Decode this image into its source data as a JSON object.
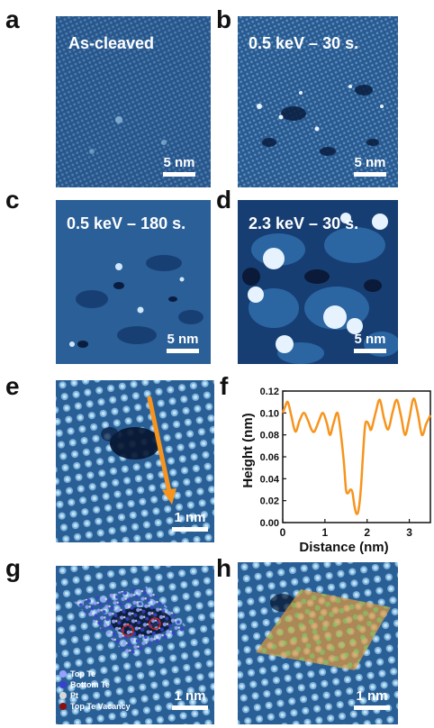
{
  "panels": {
    "a": {
      "letter": "a",
      "label": "As-cleaved",
      "scale": "5 nm"
    },
    "b": {
      "letter": "b",
      "label": "0.5 keV – 30 s.",
      "scale": "5 nm"
    },
    "c": {
      "letter": "c",
      "label": "0.5 keV – 180 s.",
      "scale": "5 nm"
    },
    "d": {
      "letter": "d",
      "label": "2.3 keV – 30 s.",
      "scale": "5 nm"
    },
    "e": {
      "letter": "e",
      "scale": "1 nm"
    },
    "f": {
      "letter": "f"
    },
    "g": {
      "letter": "g",
      "scale": "1 nm"
    },
    "h": {
      "letter": "h",
      "scale": "1 nm"
    }
  },
  "legend": {
    "items": [
      {
        "label": "Top Te",
        "color": "#9aa0ff"
      },
      {
        "label": "Bottom Te",
        "color": "#3a3fd0"
      },
      {
        "label": "Pt",
        "color": "#d8d8d8"
      },
      {
        "label": "Top Te Vacancy",
        "color": "#8b1010"
      }
    ]
  },
  "chart_data": {
    "type": "line",
    "xlabel": "Distance (nm)",
    "ylabel": "Height (nm)",
    "xlim": [
      0,
      3.5
    ],
    "ylim": [
      0,
      0.12
    ],
    "xticks": [
      0,
      1,
      2,
      3
    ],
    "yticks": [
      0.0,
      0.02,
      0.04,
      0.06,
      0.08,
      0.1,
      0.12
    ],
    "ytick_labels": [
      "0.00",
      "0.02",
      "0.04",
      "0.06",
      "0.08",
      "0.10",
      "0.12"
    ],
    "line_color": "#f7941d",
    "series": [
      {
        "x": [
          0.0,
          0.05,
          0.12,
          0.2,
          0.3,
          0.4,
          0.5,
          0.6,
          0.68,
          0.75,
          0.85,
          0.95,
          1.05,
          1.12,
          1.2,
          1.3,
          1.38,
          1.45,
          1.5,
          1.55,
          1.6,
          1.65,
          1.7,
          1.75,
          1.8,
          1.85,
          1.9,
          1.95,
          2.0,
          2.05,
          2.1,
          2.2,
          2.3,
          2.4,
          2.5,
          2.6,
          2.7,
          2.8,
          2.9,
          3.0,
          3.1,
          3.2,
          3.3,
          3.4,
          3.5
        ],
        "y": [
          0.1,
          0.105,
          0.11,
          0.098,
          0.083,
          0.093,
          0.1,
          0.093,
          0.085,
          0.083,
          0.092,
          0.1,
          0.09,
          0.08,
          0.09,
          0.1,
          0.08,
          0.055,
          0.03,
          0.027,
          0.03,
          0.028,
          0.015,
          0.008,
          0.012,
          0.03,
          0.06,
          0.088,
          0.092,
          0.088,
          0.085,
          0.1,
          0.112,
          0.095,
          0.085,
          0.1,
          0.112,
          0.098,
          0.08,
          0.095,
          0.113,
          0.1,
          0.08,
          0.09,
          0.098
        ]
      }
    ]
  }
}
